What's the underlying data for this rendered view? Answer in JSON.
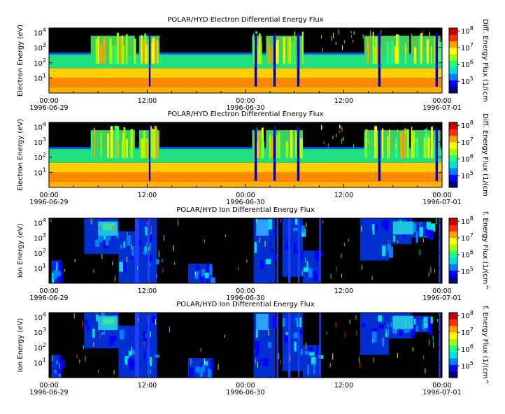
{
  "chart_data": [
    {
      "type": "heatmap",
      "title": "POLAR/HYD  Electron Differential Energy Flux",
      "ylabel": "Electron Energy (eV)",
      "colorbar_label": "Diff. Energy Flux (1/(cm",
      "y_scale": "log",
      "ylim": [
        1,
        20000
      ],
      "y_ticks": [
        {
          "value": 10,
          "exp": "1"
        },
        {
          "value": 100,
          "exp": "2"
        },
        {
          "value": 1000,
          "exp": "3"
        },
        {
          "value": 10000,
          "exp": "4"
        }
      ],
      "x_range": [
        "1996-06-29 00:00",
        "1996-07-01 00:00"
      ],
      "x_ticks": [
        {
          "hour": 0,
          "time": "00:00",
          "date": "1996-06-29"
        },
        {
          "hour": 12,
          "time": "12:00",
          "date": ""
        },
        {
          "hour": 24,
          "time": "00:00",
          "date": "1996-06-30"
        },
        {
          "hour": 36,
          "time": "12:00",
          "date": ""
        },
        {
          "hour": 48,
          "time": "00:00",
          "date": "1996-07-01"
        }
      ],
      "colorbar_ticks": [
        {
          "value": 100000,
          "exp": "5"
        },
        {
          "value": 1000000,
          "exp": "6"
        },
        {
          "value": 10000000,
          "exp": "7"
        },
        {
          "value": 100000000,
          "exp": "8"
        }
      ],
      "colorbar_range": [
        20000,
        150000000
      ]
    },
    {
      "type": "heatmap",
      "title": "POLAR/HYD  Electron Differential Energy Flux",
      "ylabel": "Electron Energy (eV)",
      "colorbar_label": "Diff. Energy Flux (1/(cm",
      "y_scale": "log",
      "ylim": [
        1,
        20000
      ],
      "y_ticks": [
        {
          "value": 10,
          "exp": "1"
        },
        {
          "value": 100,
          "exp": "2"
        },
        {
          "value": 1000,
          "exp": "3"
        },
        {
          "value": 10000,
          "exp": "4"
        }
      ],
      "x_range": [
        "1996-06-29 00:00",
        "1996-07-01 00:00"
      ],
      "x_ticks": [
        {
          "hour": 0,
          "time": "00:00",
          "date": "1996-06-29"
        },
        {
          "hour": 12,
          "time": "12:00",
          "date": ""
        },
        {
          "hour": 24,
          "time": "00:00",
          "date": "1996-06-30"
        },
        {
          "hour": 36,
          "time": "12:00",
          "date": ""
        },
        {
          "hour": 48,
          "time": "00:00",
          "date": "1996-07-01"
        }
      ],
      "colorbar_ticks": [
        {
          "value": 100000,
          "exp": "5"
        },
        {
          "value": 1000000,
          "exp": "6"
        },
        {
          "value": 10000000,
          "exp": "7"
        },
        {
          "value": 100000000,
          "exp": "8"
        }
      ],
      "colorbar_range": [
        20000,
        150000000
      ]
    },
    {
      "type": "heatmap",
      "title": "POLAR/HYD  Ion Differential Energy Flux",
      "ylabel": "Ion Energy (eV)",
      "colorbar_label": "f. Energy Flux (1/(cm^",
      "y_scale": "log",
      "ylim": [
        1,
        20000
      ],
      "y_ticks": [
        {
          "value": 10,
          "exp": "1"
        },
        {
          "value": 100,
          "exp": "2"
        },
        {
          "value": 1000,
          "exp": "3"
        },
        {
          "value": 10000,
          "exp": "4"
        }
      ],
      "x_range": [
        "1996-06-29 00:00",
        "1996-07-01 00:00"
      ],
      "x_ticks": [
        {
          "hour": 0,
          "time": "00:00",
          "date": "1996-06-29"
        },
        {
          "hour": 12,
          "time": "12:00",
          "date": ""
        },
        {
          "hour": 24,
          "time": "00:00",
          "date": "1996-06-30"
        },
        {
          "hour": 36,
          "time": "12:00",
          "date": ""
        },
        {
          "hour": 48,
          "time": "00:00",
          "date": "1996-07-01"
        }
      ],
      "colorbar_ticks": [
        {
          "value": 100000,
          "exp": "5"
        },
        {
          "value": 1000000,
          "exp": "6"
        },
        {
          "value": 10000000,
          "exp": "7"
        },
        {
          "value": 100000000,
          "exp": "8"
        }
      ],
      "colorbar_range": [
        20000,
        150000000
      ]
    },
    {
      "type": "heatmap",
      "title": "POLAR/HYD  Ion Differential Energy Flux",
      "ylabel": "Ion Energy (eV)",
      "colorbar_label": "f. Energy Flux (1/(cm^",
      "y_scale": "log",
      "ylim": [
        1,
        20000
      ],
      "y_ticks": [
        {
          "value": 10,
          "exp": "1"
        },
        {
          "value": 100,
          "exp": "2"
        },
        {
          "value": 1000,
          "exp": "3"
        },
        {
          "value": 10000,
          "exp": "4"
        }
      ],
      "x_range": [
        "1996-06-29 00:00",
        "1996-07-01 00:00"
      ],
      "x_ticks": [
        {
          "hour": 0,
          "time": "00:00",
          "date": "1996-06-29"
        },
        {
          "hour": 12,
          "time": "12:00",
          "date": ""
        },
        {
          "hour": 24,
          "time": "00:00",
          "date": "1996-06-30"
        },
        {
          "hour": 36,
          "time": "12:00",
          "date": ""
        },
        {
          "hour": 48,
          "time": "00:00",
          "date": "1996-07-01"
        }
      ],
      "colorbar_ticks": [
        {
          "value": 100000,
          "exp": "5"
        },
        {
          "value": 1000000,
          "exp": "6"
        },
        {
          "value": 10000000,
          "exp": "7"
        },
        {
          "value": 100000000,
          "exp": "8"
        }
      ],
      "colorbar_range": [
        20000,
        150000000
      ]
    }
  ],
  "colors": {
    "background_fill": "#000000",
    "colormap": [
      "#00007f",
      "#0000ff",
      "#0080ff",
      "#00e0e0",
      "#20ff80",
      "#a0ff00",
      "#ffff00",
      "#ffa000",
      "#ff3000",
      "#c00000"
    ]
  }
}
